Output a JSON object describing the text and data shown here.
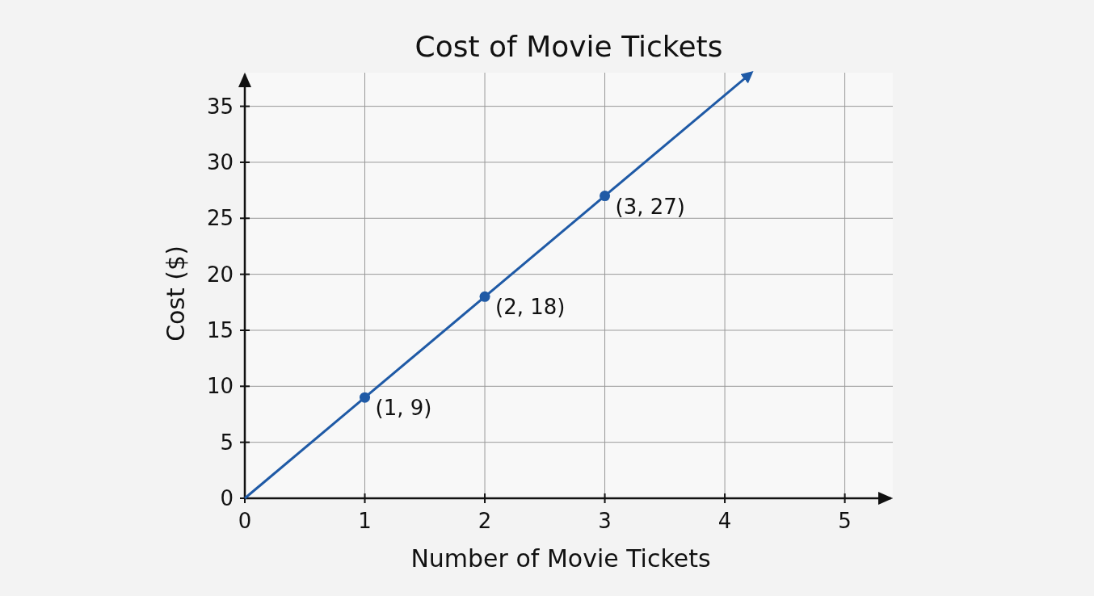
{
  "chart_data": {
    "type": "line",
    "title": "Cost of Movie Tickets",
    "xlabel": "Number of Movie Tickets",
    "ylabel": "Cost ($)",
    "xlim": [
      0,
      5.4
    ],
    "ylim": [
      0,
      38
    ],
    "xticks": [
      0,
      1,
      2,
      3,
      4,
      5
    ],
    "yticks": [
      0,
      5,
      10,
      15,
      20,
      25,
      30,
      35
    ],
    "grid": true,
    "series": [
      {
        "x": [
          0,
          4.2
        ],
        "values": [
          0,
          37.8
        ],
        "color": "#1f5aa6",
        "marker": "none"
      },
      {
        "type": "scatter",
        "x": [
          1,
          2,
          3
        ],
        "values": [
          9,
          18,
          27
        ],
        "color": "#1f5aa6",
        "marker": "circle",
        "value_labels": [
          "(1, 9)",
          "(2, 18)",
          "(3, 27)"
        ]
      }
    ]
  }
}
